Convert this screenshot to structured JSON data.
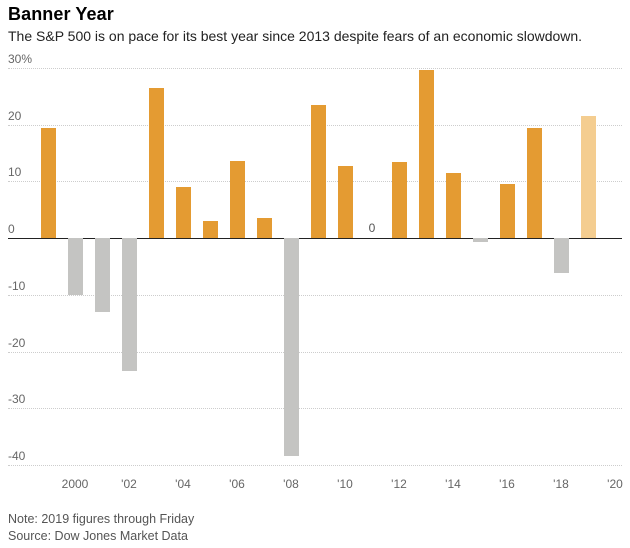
{
  "header": {
    "title": "Banner Year",
    "subtitle": "The S&P 500 is on pace for its best year since 2013 despite fears of an economic slowdown."
  },
  "footer": {
    "note": "Note: 2019 figures through Friday",
    "source": "Source: Dow Jones Market Data"
  },
  "chart_data": {
    "type": "bar",
    "title": "Banner Year",
    "subtitle": "The S&P 500 is on pace for its best year since 2013 despite fears of an economic slowdown.",
    "unit": "%",
    "ylim": [
      -40,
      30
    ],
    "yticks": [
      30,
      20,
      10,
      0,
      -10,
      -20,
      -30,
      -40
    ],
    "ytick_labels": [
      "30%",
      "20",
      "10",
      "0",
      "-10",
      "-20",
      "-30",
      "-40"
    ],
    "x": [
      1999,
      2000,
      2001,
      2002,
      2003,
      2004,
      2005,
      2006,
      2007,
      2008,
      2009,
      2010,
      2011,
      2012,
      2013,
      2014,
      2015,
      2016,
      2017,
      2018,
      2019
    ],
    "values": [
      19.5,
      -10.1,
      -13.0,
      -23.4,
      26.4,
      9.0,
      3.0,
      13.6,
      3.5,
      -38.5,
      23.5,
      12.8,
      0.0,
      13.4,
      29.6,
      11.4,
      -0.7,
      9.5,
      19.4,
      -6.2,
      21.5
    ],
    "xtick_years": [
      2000,
      2002,
      2004,
      2006,
      2008,
      2010,
      2012,
      2014,
      2016,
      2018,
      2020
    ],
    "xtick_labels": [
      "2000",
      "'02",
      "'04",
      "'06",
      "'08",
      "'10",
      "'12",
      "'14",
      "'16",
      "'18",
      "'20"
    ],
    "highlight_year": 2019,
    "annotation": {
      "text": "0",
      "year": 2011
    },
    "colors": {
      "positive": "#E49B32",
      "negative": "#C4C4C2",
      "current_year": "#F4CD90",
      "grid": "#CDCDCD",
      "zero_line": "#222222"
    },
    "grid": true,
    "legend": "none"
  }
}
